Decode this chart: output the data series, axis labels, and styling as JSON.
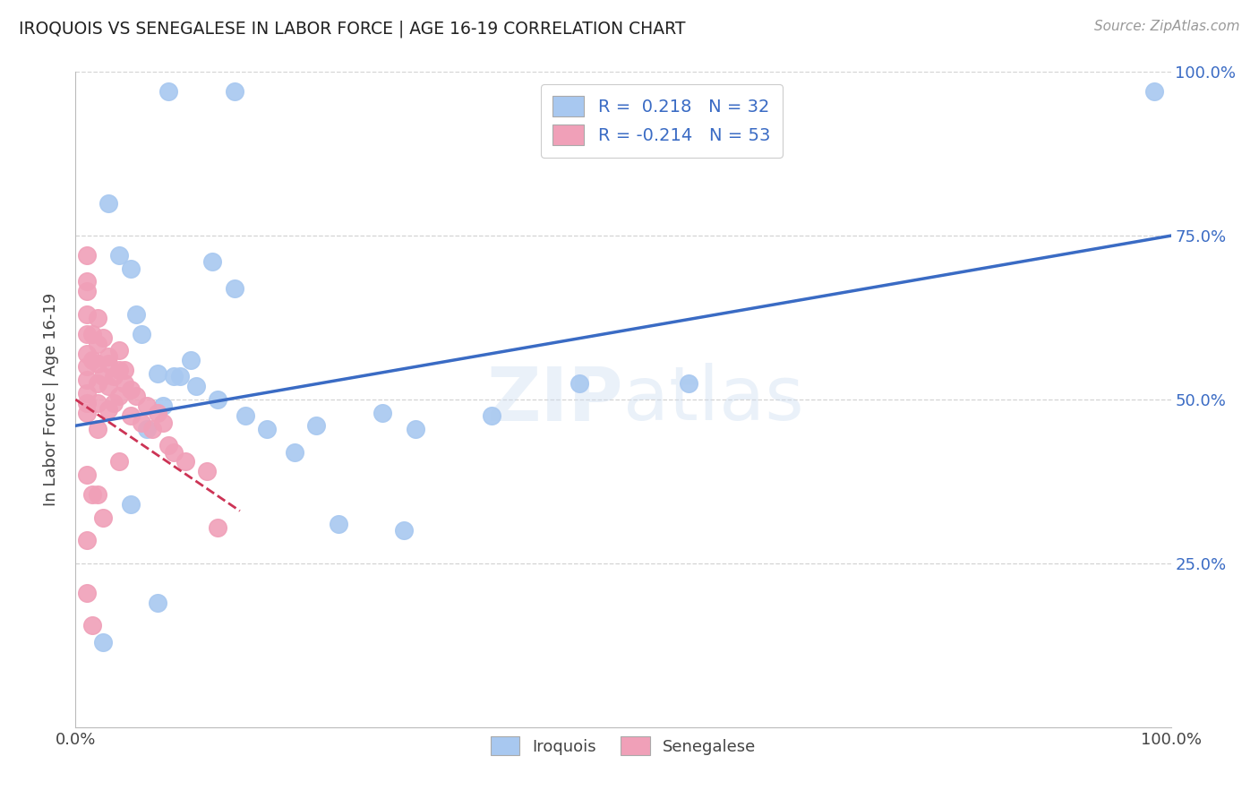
{
  "title": "IROQUOIS VS SENEGALESE IN LABOR FORCE | AGE 16-19 CORRELATION CHART",
  "source": "Source: ZipAtlas.com",
  "ylabel": "In Labor Force | Age 16-19",
  "xlim": [
    0.0,
    1.0
  ],
  "ylim": [
    0.0,
    1.0
  ],
  "background_color": "#ffffff",
  "grid_color": "#d0d0d0",
  "watermark": "ZIPatlas",
  "iroquois_color": "#a8c8f0",
  "senegalese_color": "#f0a0b8",
  "iroquois_line_color": "#3a6bc4",
  "senegalese_line_color": "#cc3355",
  "legend_text_color": "#3a6bc4",
  "iroquois_x": [
    0.085,
    0.145,
    0.03,
    0.04,
    0.05,
    0.055,
    0.06,
    0.075,
    0.09,
    0.095,
    0.11,
    0.13,
    0.155,
    0.175,
    0.22,
    0.28,
    0.31,
    0.38,
    0.46,
    0.56,
    0.125,
    0.145,
    0.105,
    0.08,
    0.065,
    0.2,
    0.24,
    0.3,
    0.025,
    0.05,
    0.985,
    0.075
  ],
  "iroquois_y": [
    0.97,
    0.97,
    0.8,
    0.72,
    0.7,
    0.63,
    0.6,
    0.54,
    0.535,
    0.535,
    0.52,
    0.5,
    0.475,
    0.455,
    0.46,
    0.48,
    0.455,
    0.475,
    0.525,
    0.525,
    0.71,
    0.67,
    0.56,
    0.49,
    0.455,
    0.42,
    0.31,
    0.3,
    0.13,
    0.34,
    0.97,
    0.19
  ],
  "senegalese_x": [
    0.01,
    0.01,
    0.01,
    0.01,
    0.01,
    0.01,
    0.01,
    0.01,
    0.015,
    0.015,
    0.02,
    0.02,
    0.02,
    0.02,
    0.02,
    0.025,
    0.03,
    0.03,
    0.03,
    0.035,
    0.035,
    0.04,
    0.04,
    0.045,
    0.05,
    0.05,
    0.055,
    0.06,
    0.065,
    0.07,
    0.075,
    0.08,
    0.085,
    0.09,
    0.1,
    0.12,
    0.13,
    0.01,
    0.015,
    0.025,
    0.01,
    0.02,
    0.025,
    0.03,
    0.01,
    0.04,
    0.045,
    0.04,
    0.01,
    0.02,
    0.01,
    0.015,
    0.01
  ],
  "senegalese_y": [
    0.63,
    0.6,
    0.57,
    0.55,
    0.53,
    0.51,
    0.495,
    0.48,
    0.6,
    0.56,
    0.585,
    0.555,
    0.525,
    0.495,
    0.455,
    0.535,
    0.555,
    0.52,
    0.485,
    0.535,
    0.495,
    0.545,
    0.505,
    0.525,
    0.515,
    0.475,
    0.505,
    0.465,
    0.49,
    0.455,
    0.48,
    0.465,
    0.43,
    0.42,
    0.405,
    0.39,
    0.305,
    0.285,
    0.355,
    0.32,
    0.665,
    0.625,
    0.595,
    0.565,
    0.68,
    0.575,
    0.545,
    0.405,
    0.385,
    0.355,
    0.205,
    0.155,
    0.72
  ],
  "irq_trend_x0": 0.0,
  "irq_trend_y0": 0.46,
  "irq_trend_x1": 1.0,
  "irq_trend_y1": 0.75,
  "sen_trend_x0": 0.0,
  "sen_trend_y0": 0.5,
  "sen_trend_x1": 0.15,
  "sen_trend_y1": 0.33
}
